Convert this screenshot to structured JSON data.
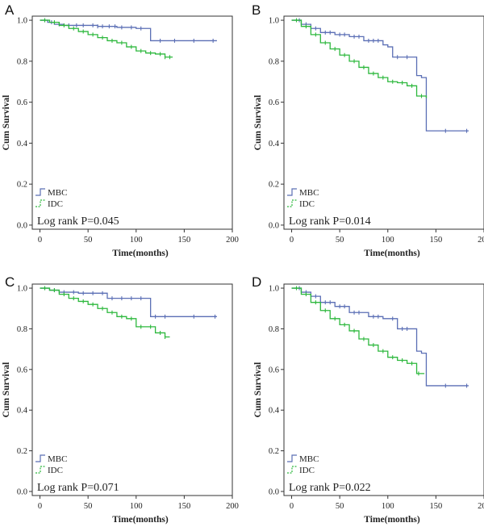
{
  "chart_data": [
    {
      "type": "line",
      "panel_label": "A",
      "xlabel": "Time(months)",
      "ylabel": "Cum Survival",
      "xlim": [
        -8,
        200
      ],
      "ylim": [
        -0.02,
        1.02
      ],
      "xticks": [
        0,
        50,
        100,
        150,
        200
      ],
      "yticks": [
        0.0,
        0.2,
        0.4,
        0.6,
        0.8,
        1.0
      ],
      "legend": [
        "MBC",
        "IDC"
      ],
      "annotation": "Log rank P=0.045",
      "series": [
        {
          "name": "MBC",
          "color": "#5b6fb5",
          "dashed": false,
          "x": [
            0,
            8,
            15,
            25,
            40,
            60,
            80,
            100,
            115,
            140,
            184
          ],
          "y": [
            1.0,
            0.99,
            0.98,
            0.975,
            0.975,
            0.97,
            0.965,
            0.96,
            0.9,
            0.9,
            0.9
          ],
          "censor_x": [
            5,
            12,
            20,
            30,
            38,
            45,
            55,
            60,
            65,
            72,
            78,
            85,
            95,
            105,
            125,
            140,
            160,
            180
          ]
        },
        {
          "name": "IDC",
          "color": "#2db83d",
          "dashed": false,
          "x": [
            0,
            10,
            20,
            30,
            40,
            50,
            60,
            70,
            80,
            90,
            100,
            110,
            120,
            130,
            138
          ],
          "y": [
            1.0,
            0.99,
            0.975,
            0.96,
            0.945,
            0.93,
            0.915,
            0.9,
            0.89,
            0.87,
            0.85,
            0.84,
            0.835,
            0.82,
            0.82
          ],
          "censor_x": [
            5,
            15,
            25,
            35,
            45,
            55,
            65,
            75,
            85,
            95,
            105,
            115,
            125,
            130,
            135
          ]
        }
      ]
    },
    {
      "type": "line",
      "panel_label": "B",
      "xlabel": "Time(months)",
      "ylabel": "Cum Survival",
      "xlim": [
        -8,
        200
      ],
      "ylim": [
        -0.02,
        1.02
      ],
      "xticks": [
        0,
        50,
        100,
        150,
        200
      ],
      "yticks": [
        0.0,
        0.2,
        0.4,
        0.6,
        0.8,
        1.0
      ],
      "legend": [
        "MBC",
        "IDC"
      ],
      "annotation": "Log rank P=0.014",
      "series": [
        {
          "name": "MBC",
          "color": "#5b6fb5",
          "dashed": false,
          "x": [
            0,
            10,
            20,
            30,
            45,
            60,
            75,
            95,
            100,
            105,
            115,
            125,
            130,
            135,
            140,
            184
          ],
          "y": [
            1.0,
            0.98,
            0.96,
            0.94,
            0.93,
            0.92,
            0.9,
            0.88,
            0.87,
            0.82,
            0.82,
            0.82,
            0.73,
            0.72,
            0.46,
            0.46
          ],
          "censor_x": [
            8,
            15,
            25,
            35,
            40,
            50,
            55,
            65,
            70,
            80,
            85,
            90,
            110,
            120,
            160,
            182
          ]
        },
        {
          "name": "IDC",
          "color": "#2db83d",
          "dashed": false,
          "x": [
            0,
            10,
            20,
            30,
            40,
            50,
            60,
            70,
            80,
            90,
            100,
            110,
            120,
            130,
            140
          ],
          "y": [
            1.0,
            0.97,
            0.93,
            0.89,
            0.86,
            0.83,
            0.8,
            0.77,
            0.74,
            0.72,
            0.7,
            0.695,
            0.68,
            0.63,
            0.62
          ],
          "censor_x": [
            5,
            15,
            25,
            35,
            45,
            55,
            65,
            75,
            85,
            95,
            105,
            115,
            125,
            135
          ]
        }
      ]
    },
    {
      "type": "line",
      "panel_label": "C",
      "xlabel": "Time(months)",
      "ylabel": "Cum Survival",
      "xlim": [
        -8,
        200
      ],
      "ylim": [
        -0.02,
        1.02
      ],
      "xticks": [
        0,
        50,
        100,
        150,
        200
      ],
      "yticks": [
        0.0,
        0.2,
        0.4,
        0.6,
        0.8,
        1.0
      ],
      "legend": [
        "MBC",
        "IDC"
      ],
      "annotation": "Log rank P=0.071",
      "series": [
        {
          "name": "MBC",
          "color": "#5b6fb5",
          "dashed": false,
          "x": [
            0,
            10,
            20,
            40,
            70,
            100,
            115,
            140,
            184
          ],
          "y": [
            1.0,
            0.99,
            0.98,
            0.975,
            0.95,
            0.95,
            0.86,
            0.86,
            0.86
          ],
          "censor_x": [
            5,
            15,
            25,
            35,
            45,
            55,
            65,
            75,
            85,
            95,
            105,
            120,
            130,
            160,
            182
          ]
        },
        {
          "name": "IDC",
          "color": "#2db83d",
          "dashed": false,
          "x": [
            0,
            10,
            20,
            30,
            40,
            50,
            60,
            70,
            80,
            90,
            100,
            110,
            120,
            130,
            135
          ],
          "y": [
            1.0,
            0.99,
            0.97,
            0.95,
            0.935,
            0.92,
            0.9,
            0.88,
            0.86,
            0.85,
            0.81,
            0.81,
            0.78,
            0.76,
            0.76
          ],
          "censor_x": [
            5,
            15,
            25,
            35,
            45,
            55,
            65,
            75,
            85,
            95,
            105,
            115,
            125,
            130
          ]
        }
      ]
    },
    {
      "type": "line",
      "panel_label": "D",
      "xlabel": "Time(months)",
      "ylabel": "Cum Survival",
      "xlim": [
        -8,
        200
      ],
      "ylim": [
        -0.02,
        1.02
      ],
      "xticks": [
        0,
        50,
        100,
        150,
        200
      ],
      "yticks": [
        0.0,
        0.2,
        0.4,
        0.6,
        0.8,
        1.0
      ],
      "legend": [
        "MBC",
        "IDC"
      ],
      "annotation": "Log rank P=0.022",
      "series": [
        {
          "name": "MBC",
          "color": "#5b6fb5",
          "dashed": false,
          "x": [
            0,
            10,
            20,
            30,
            45,
            60,
            80,
            95,
            100,
            110,
            125,
            130,
            135,
            140,
            184
          ],
          "y": [
            1.0,
            0.98,
            0.96,
            0.93,
            0.91,
            0.88,
            0.86,
            0.85,
            0.85,
            0.8,
            0.8,
            0.69,
            0.68,
            0.52,
            0.52
          ],
          "censor_x": [
            8,
            15,
            25,
            35,
            40,
            50,
            55,
            65,
            70,
            85,
            90,
            105,
            115,
            120,
            160,
            182
          ]
        },
        {
          "name": "IDC",
          "color": "#2db83d",
          "dashed": false,
          "x": [
            0,
            10,
            20,
            30,
            40,
            50,
            60,
            70,
            80,
            90,
            100,
            110,
            120,
            130,
            138
          ],
          "y": [
            1.0,
            0.97,
            0.93,
            0.89,
            0.85,
            0.82,
            0.79,
            0.75,
            0.72,
            0.69,
            0.66,
            0.645,
            0.63,
            0.58,
            0.58
          ],
          "censor_x": [
            5,
            15,
            25,
            35,
            45,
            55,
            65,
            75,
            85,
            95,
            105,
            115,
            125,
            132
          ]
        }
      ]
    }
  ]
}
